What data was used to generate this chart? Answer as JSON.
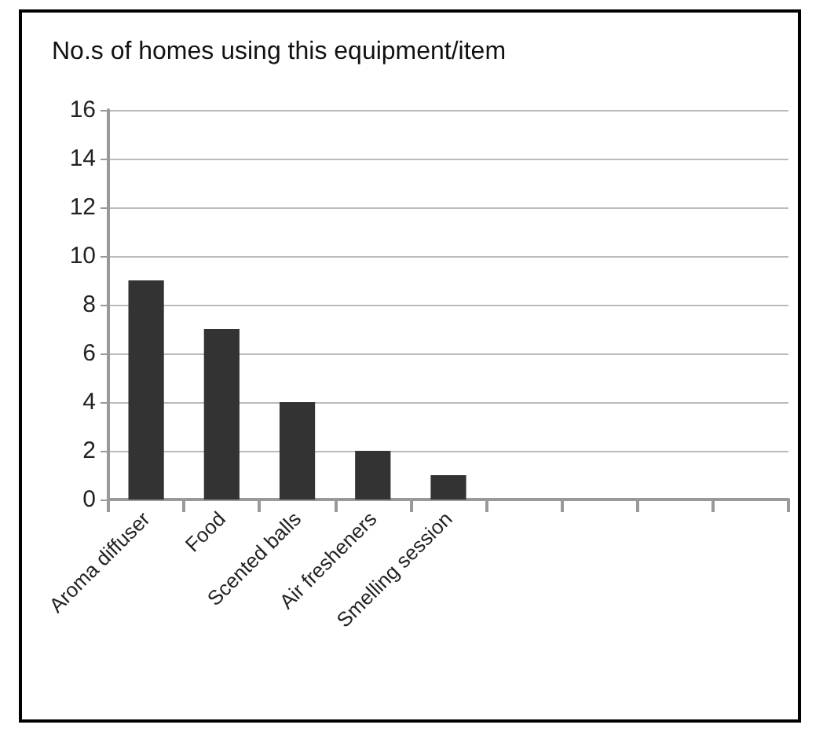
{
  "chart_data": {
    "type": "bar",
    "title": "No.s of homes using this equipment/item",
    "categories": [
      "Aroma diffuser",
      "Food",
      "Scented balls",
      "Air fresheners",
      "Smelling session",
      null,
      null,
      null,
      null
    ],
    "values": [
      9,
      7,
      4,
      2,
      1,
      null,
      null,
      null,
      null
    ],
    "color": "#333333",
    "ylim": [
      0,
      16
    ],
    "yticks": [
      0,
      2,
      4,
      6,
      8,
      10,
      12,
      14,
      16
    ],
    "grid": "y"
  }
}
